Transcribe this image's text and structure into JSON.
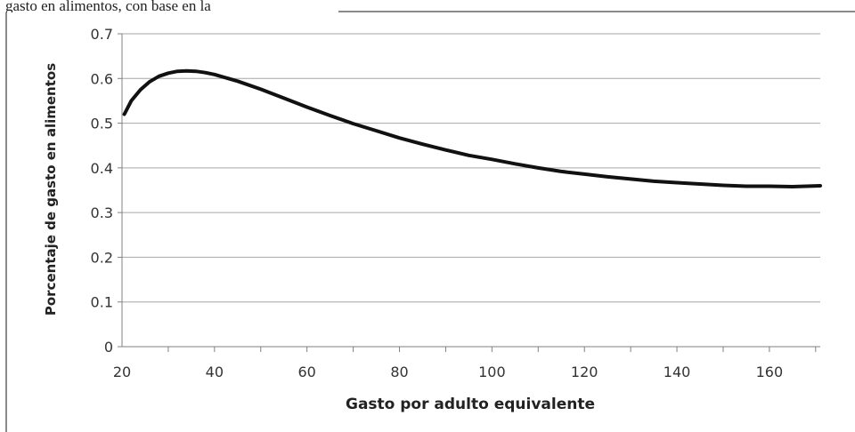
{
  "page": {
    "top_caption": "gasto en alimentos, con base en la"
  },
  "chart_data": {
    "type": "line",
    "title": "",
    "xlabel": "Gasto por adulto equivalente",
    "ylabel": "Porcentaje de gasto en alimentos",
    "xlim": [
      20,
      171
    ],
    "ylim": [
      0,
      0.7
    ],
    "x_ticks": [
      20,
      40,
      60,
      80,
      100,
      120,
      140,
      160
    ],
    "x_tick_labels": [
      "20",
      "40",
      "60",
      "80",
      "100",
      "120",
      "140",
      "160"
    ],
    "y_ticks": [
      0,
      0.1,
      0.2,
      0.3,
      0.4,
      0.5,
      0.6,
      0.7
    ],
    "y_tick_labels": [
      "0",
      "0.1",
      "0.2",
      "0.3",
      "0.4",
      "0.5",
      "0.6",
      "0.7"
    ],
    "x_minor_step": 10,
    "grid": "horizontal",
    "legend": "none",
    "line_color": "#111111",
    "grid_color": "#a6a6a6",
    "series": [
      {
        "x": [
          20.5,
          21,
          22,
          24,
          26,
          28,
          30,
          32,
          34,
          36,
          38,
          40,
          45,
          50,
          55,
          60,
          65,
          70,
          75,
          80,
          85,
          90,
          95,
          100,
          105,
          110,
          115,
          120,
          125,
          130,
          135,
          140,
          145,
          150,
          155,
          160,
          165,
          171
        ],
        "y": [
          0.52,
          0.53,
          0.55,
          0.575,
          0.593,
          0.605,
          0.612,
          0.616,
          0.617,
          0.616,
          0.613,
          0.609,
          0.594,
          0.576,
          0.556,
          0.536,
          0.517,
          0.499,
          0.483,
          0.467,
          0.453,
          0.44,
          0.428,
          0.419,
          0.409,
          0.4,
          0.392,
          0.386,
          0.38,
          0.375,
          0.37,
          0.367,
          0.364,
          0.361,
          0.359,
          0.359,
          0.358,
          0.36
        ]
      }
    ]
  }
}
